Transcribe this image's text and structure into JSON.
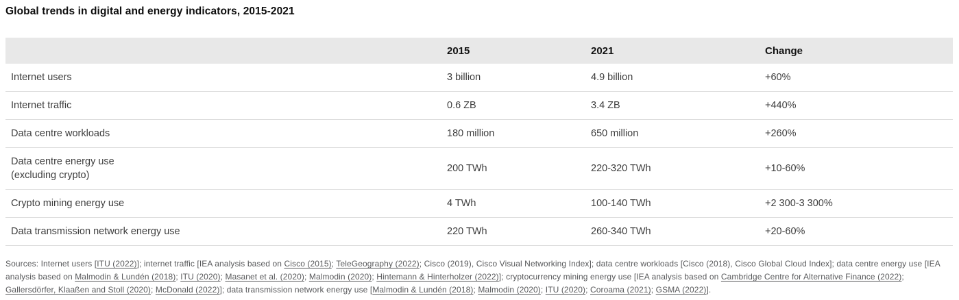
{
  "title": "Global trends in digital and energy indicators, 2015-2021",
  "table": {
    "header": {
      "col0": "",
      "col1": "2015",
      "col2": "2021",
      "col3": "Change"
    },
    "rows": [
      {
        "label": "Internet users",
        "v2015": "3 billion",
        "v2021": "4.9 billion",
        "change": "+60%"
      },
      {
        "label": "Internet traffic",
        "v2015": "0.6 ZB",
        "v2021": "3.4 ZB",
        "change": "+440%"
      },
      {
        "label": "Data centre workloads",
        "v2015": "180 million",
        "v2021": "650 million",
        "change": "+260%"
      },
      {
        "label": "Data centre energy use\n(excluding crypto)",
        "v2015": "200 TWh",
        "v2021": "220-320 TWh",
        "change": "+10-60%"
      },
      {
        "label": "Crypto mining energy use",
        "v2015": "4 TWh",
        "v2021": "100-140 TWh",
        "change": "+2 300-3 300%"
      },
      {
        "label": "Data transmission network energy use",
        "v2015": "220 TWh",
        "v2021": "260-340 TWh",
        "change": "+20-60%"
      }
    ]
  },
  "footnote": {
    "segments": [
      {
        "t": "Sources: Internet users [",
        "link": false
      },
      {
        "t": "ITU (2022)",
        "link": true
      },
      {
        "t": "]; internet traffic [IEA analysis based on ",
        "link": false
      },
      {
        "t": "Cisco (2015)",
        "link": true
      },
      {
        "t": "; ",
        "link": false
      },
      {
        "t": "TeleGeography (2022)",
        "link": true
      },
      {
        "t": "; Cisco (2019), Cisco Visual Networking Index]; data centre workloads [Cisco (2018), Cisco Global Cloud Index]; data centre energy use [IEA analysis based on ",
        "link": false
      },
      {
        "t": "Malmodin & Lundén (2018)",
        "link": true
      },
      {
        "t": "; ",
        "link": false
      },
      {
        "t": "ITU (2020)",
        "link": true
      },
      {
        "t": "; ",
        "link": false
      },
      {
        "t": "Masanet et al. (2020)",
        "link": true
      },
      {
        "t": "; ",
        "link": false
      },
      {
        "t": "Malmodin (2020)",
        "link": true
      },
      {
        "t": "; ",
        "link": false
      },
      {
        "t": "Hintemann & Hinterholzer (2022)",
        "link": true
      },
      {
        "t": "]; cryptocurrency mining energy use [IEA analysis based on ",
        "link": false
      },
      {
        "t": "Cambridge Centre for Alternative Finance (2022)",
        "link": true
      },
      {
        "t": "; ",
        "link": false
      },
      {
        "t": "Gallersdörfer, Klaaßen and Stoll (2020)",
        "link": true
      },
      {
        "t": "; ",
        "link": false
      },
      {
        "t": "McDonald (2022)",
        "link": true
      },
      {
        "t": "]; data transmission network energy use [",
        "link": false
      },
      {
        "t": "Malmodin & Lundén (2018)",
        "link": true
      },
      {
        "t": "; ",
        "link": false
      },
      {
        "t": "Malmodin (2020)",
        "link": true
      },
      {
        "t": "; ",
        "link": false
      },
      {
        "t": "ITU (2020)",
        "link": true
      },
      {
        "t": "; ",
        "link": false
      },
      {
        "t": "Coroama (2021)",
        "link": true
      },
      {
        "t": "; ",
        "link": false
      },
      {
        "t": "GSMA (2022)",
        "link": true
      },
      {
        "t": "].",
        "link": false
      }
    ]
  },
  "colors": {
    "header_bg": "#e8e8e8",
    "row_border": "#dddddd",
    "body_text": "#3d3d3d",
    "footnote_text": "#58595b"
  },
  "chart_data": {
    "type": "table",
    "title": "Global trends in digital and energy indicators, 2015-2021",
    "columns": [
      "",
      "2015",
      "2021",
      "Change"
    ],
    "rows": [
      [
        "Internet users",
        "3 billion",
        "4.9 billion",
        "+60%"
      ],
      [
        "Internet traffic",
        "0.6 ZB",
        "3.4 ZB",
        "+440%"
      ],
      [
        "Data centre workloads",
        "180 million",
        "650 million",
        "+260%"
      ],
      [
        "Data centre energy use (excluding crypto)",
        "200 TWh",
        "220-320 TWh",
        "+10-60%"
      ],
      [
        "Crypto mining energy use",
        "4 TWh",
        "100-140 TWh",
        "+2 300-3 300%"
      ],
      [
        "Data transmission network energy use",
        "220 TWh",
        "260-340 TWh",
        "+20-60%"
      ]
    ]
  }
}
